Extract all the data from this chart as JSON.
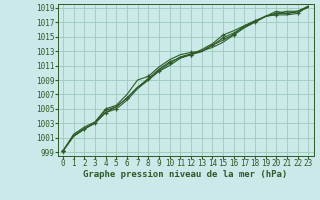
{
  "xlabel": "Graphe pression niveau de la mer (hPa)",
  "bg_color": "#cbe9e9",
  "grid_color": "#99ccbb",
  "line_color": "#2d5a27",
  "xlim": [
    -0.5,
    23.5
  ],
  "ylim": [
    998.5,
    1019.5
  ],
  "yticks": [
    999,
    1001,
    1003,
    1005,
    1007,
    1009,
    1011,
    1013,
    1015,
    1017,
    1019
  ],
  "xticks": [
    0,
    1,
    2,
    3,
    4,
    5,
    6,
    7,
    8,
    9,
    10,
    11,
    12,
    13,
    14,
    15,
    16,
    17,
    18,
    19,
    20,
    21,
    22,
    23
  ],
  "series": [
    [
      999.2,
      1001.2,
      1002.2,
      1003.1,
      1004.5,
      1005.3,
      1006.5,
      1008.0,
      1009.2,
      1010.5,
      1011.5,
      1012.1,
      1012.5,
      1012.9,
      1013.8,
      1014.5,
      1015.3,
      1016.5,
      1017.2,
      1017.8,
      1018.0,
      1018.0,
      1018.2,
      1019.2
    ],
    [
      999.2,
      1001.3,
      1002.2,
      1003.1,
      1004.8,
      1005.3,
      1006.5,
      1008.0,
      1009.0,
      1010.2,
      1011.0,
      1012.0,
      1012.5,
      1013.2,
      1014.0,
      1015.2,
      1015.8,
      1016.5,
      1017.0,
      1017.8,
      1018.5,
      1018.2,
      1018.5,
      1019.0
    ],
    [
      999.2,
      1001.5,
      1002.5,
      1003.2,
      1005.0,
      1005.5,
      1007.0,
      1009.0,
      1009.5,
      1010.8,
      1011.8,
      1012.5,
      1012.8,
      1013.0,
      1013.5,
      1014.2,
      1015.2,
      1016.2,
      1017.0,
      1017.8,
      1018.2,
      1018.5,
      1018.5,
      1019.2
    ],
    [
      999.2,
      1001.3,
      1002.3,
      1003.0,
      1004.5,
      1005.0,
      1006.2,
      1007.8,
      1009.0,
      1010.3,
      1011.3,
      1012.2,
      1012.6,
      1013.0,
      1013.8,
      1014.8,
      1015.5,
      1016.3,
      1017.0,
      1017.8,
      1018.2,
      1018.2,
      1018.4,
      1019.1
    ]
  ],
  "marker_every": [
    1,
    2,
    3,
    4
  ]
}
